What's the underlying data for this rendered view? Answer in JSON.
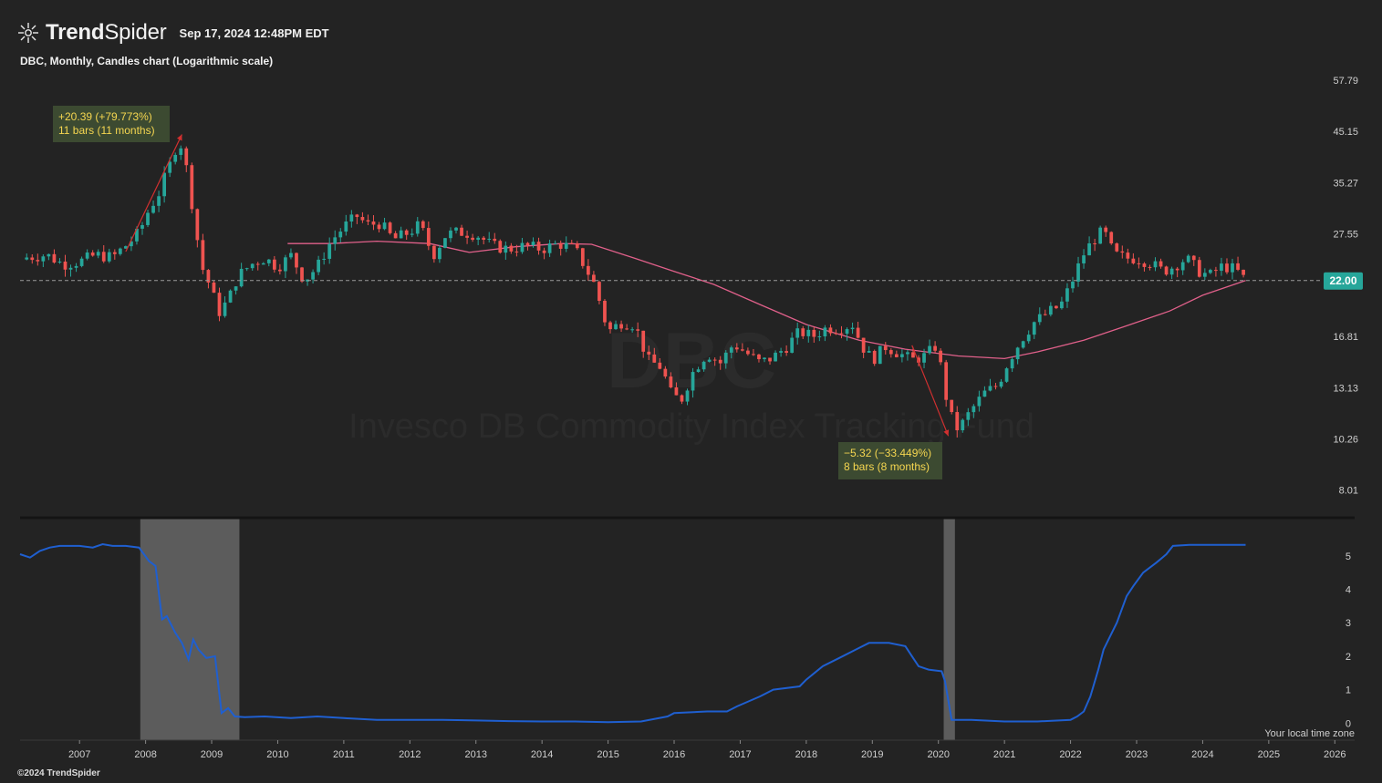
{
  "header": {
    "brand_bold": "Trend",
    "brand_light": "Spider",
    "timestamp": "Sep 17, 2024 12:48PM EDT",
    "subtitle": "DBC, Monthly, Candles chart (Logarithmic scale)",
    "copyright": "©2024 TrendSpider"
  },
  "icons": {
    "logo": "trendspider-logo-icon"
  },
  "watermark": {
    "ticker": "DBC",
    "name": "Invesco DB Commodity Index Tracking Fund"
  },
  "colors": {
    "up": "#26a69a",
    "down": "#ef5350",
    "ma": "#e0608a",
    "rate": "#1f5fd0",
    "shade": "#5c5c5c",
    "price_label": "#26a69a",
    "annotation_bg": "#3c4a31",
    "annotation_text": "#f5d650"
  },
  "chart_data": {
    "type": "candlestick",
    "symbol": "DBC",
    "timeframe": "Monthly",
    "scale": "log",
    "x_ticks": [
      "2007",
      "2008",
      "2009",
      "2010",
      "2011",
      "2012",
      "2013",
      "2014",
      "2015",
      "2016",
      "2017",
      "2018",
      "2019",
      "2020",
      "2021",
      "2022",
      "2023",
      "2024",
      "2025",
      "2026"
    ],
    "y_ticks": [
      "57.79",
      "45.15",
      "35.27",
      "27.55",
      "16.81",
      "13.13",
      "10.26",
      "8.01"
    ],
    "ylim": [
      7.2,
      62
    ],
    "last_price": "22.00",
    "last_price_value": 22.0,
    "close_path": [
      [
        2006.2,
        24.6
      ],
      [
        2006.5,
        24.9
      ],
      [
        2006.75,
        23.8
      ],
      [
        2007.0,
        24.1
      ],
      [
        2007.25,
        24.9
      ],
      [
        2007.5,
        24.6
      ],
      [
        2007.75,
        26.4
      ],
      [
        2007.92,
        28.0
      ],
      [
        2008.0,
        30.0
      ],
      [
        2008.2,
        33.5
      ],
      [
        2008.42,
        40.0
      ],
      [
        2008.5,
        44.0
      ],
      [
        2008.6,
        39.0
      ],
      [
        2008.75,
        28.5
      ],
      [
        2008.85,
        23.5
      ],
      [
        2009.0,
        21.0
      ],
      [
        2009.1,
        18.8
      ],
      [
        2009.25,
        20.0
      ],
      [
        2009.4,
        22.5
      ],
      [
        2009.6,
        23.8
      ],
      [
        2009.8,
        24.5
      ],
      [
        2010.0,
        23.5
      ],
      [
        2010.2,
        24.8
      ],
      [
        2010.4,
        22.0
      ],
      [
        2010.6,
        23.5
      ],
      [
        2010.8,
        26.5
      ],
      [
        2011.0,
        28.5
      ],
      [
        2011.2,
        30.0
      ],
      [
        2011.35,
        28.8
      ],
      [
        2011.55,
        29.0
      ],
      [
        2011.75,
        26.8
      ],
      [
        2012.0,
        27.8
      ],
      [
        2012.15,
        28.8
      ],
      [
        2012.35,
        24.8
      ],
      [
        2012.55,
        27.5
      ],
      [
        2012.75,
        27.8
      ],
      [
        2013.0,
        27.5
      ],
      [
        2013.25,
        26.0
      ],
      [
        2013.5,
        25.6
      ],
      [
        2013.75,
        26.0
      ],
      [
        2014.0,
        25.6
      ],
      [
        2014.25,
        26.3
      ],
      [
        2014.5,
        25.6
      ],
      [
        2014.65,
        23.5
      ],
      [
        2014.8,
        21.5
      ],
      [
        2014.92,
        18.8
      ],
      [
        2015.0,
        17.2
      ],
      [
        2015.2,
        18.0
      ],
      [
        2015.4,
        17.8
      ],
      [
        2015.6,
        15.0
      ],
      [
        2015.8,
        14.5
      ],
      [
        2015.95,
        12.8
      ],
      [
        2016.1,
        12.3
      ],
      [
        2016.3,
        14.3
      ],
      [
        2016.5,
        15.5
      ],
      [
        2016.7,
        14.8
      ],
      [
        2016.9,
        16.2
      ],
      [
        2017.1,
        15.5
      ],
      [
        2017.3,
        14.8
      ],
      [
        2017.5,
        15.2
      ],
      [
        2017.7,
        16.0
      ],
      [
        2017.9,
        17.2
      ],
      [
        2018.1,
        16.8
      ],
      [
        2018.3,
        17.5
      ],
      [
        2018.5,
        17.5
      ],
      [
        2018.7,
        17.8
      ],
      [
        2018.85,
        16.0
      ],
      [
        2019.0,
        15.0
      ],
      [
        2019.2,
        16.0
      ],
      [
        2019.4,
        15.5
      ],
      [
        2019.6,
        15.0
      ],
      [
        2019.8,
        15.3
      ],
      [
        2019.95,
        16.0
      ],
      [
        2020.05,
        14.3
      ],
      [
        2020.15,
        11.7
      ],
      [
        2020.3,
        10.7
      ],
      [
        2020.5,
        11.8
      ],
      [
        2020.7,
        12.8
      ],
      [
        2020.9,
        13.3
      ],
      [
        2021.05,
        14.8
      ],
      [
        2021.25,
        16.5
      ],
      [
        2021.45,
        18.0
      ],
      [
        2021.7,
        19.0
      ],
      [
        2021.85,
        19.5
      ],
      [
        2022.0,
        21.5
      ],
      [
        2022.2,
        25.0
      ],
      [
        2022.35,
        26.8
      ],
      [
        2022.5,
        28.0
      ],
      [
        2022.65,
        25.0
      ],
      [
        2022.85,
        24.5
      ],
      [
        2023.0,
        24.5
      ],
      [
        2023.2,
        24.0
      ],
      [
        2023.4,
        23.0
      ],
      [
        2023.55,
        23.5
      ],
      [
        2023.75,
        24.5
      ],
      [
        2023.95,
        23.0
      ],
      [
        2024.1,
        22.5
      ],
      [
        2024.3,
        23.6
      ],
      [
        2024.5,
        23.2
      ],
      [
        2024.65,
        22.0
      ]
    ],
    "moving_average": [
      [
        2010.15,
        26.3
      ],
      [
        2010.8,
        26.3
      ],
      [
        2011.5,
        26.6
      ],
      [
        2012.3,
        26.3
      ],
      [
        2012.9,
        25.2
      ],
      [
        2013.6,
        25.9
      ],
      [
        2014.3,
        26.3
      ],
      [
        2014.75,
        26.2
      ],
      [
        2015.4,
        24.5
      ],
      [
        2016.0,
        23.0
      ],
      [
        2016.6,
        21.6
      ],
      [
        2017.3,
        19.6
      ],
      [
        2018.0,
        17.8
      ],
      [
        2018.8,
        16.5
      ],
      [
        2019.5,
        15.8
      ],
      [
        2020.3,
        15.3
      ],
      [
        2021.0,
        15.1
      ],
      [
        2021.5,
        15.6
      ],
      [
        2022.2,
        16.5
      ],
      [
        2022.8,
        17.6
      ],
      [
        2023.5,
        19.0
      ],
      [
        2024.0,
        20.5
      ],
      [
        2024.65,
        22.0
      ]
    ],
    "annotations": [
      {
        "text1": "+20.39 (+79.773%)",
        "text2": "11 bars (11 months)",
        "from": [
          2007.7,
          25.3
        ],
        "to": [
          2008.55,
          44.5
        ]
      },
      {
        "text1": "−5.32 (−33.449%)",
        "text2": "8 bars (8 months)",
        "from": [
          2019.6,
          16.1
        ],
        "to": [
          2020.15,
          10.4
        ]
      }
    ]
  },
  "rate_panel": {
    "y_ticks": [
      "5",
      "4",
      "3",
      "2",
      "1",
      "0"
    ],
    "ylim": [
      -0.4,
      5.95
    ],
    "footer": "Your local time zone",
    "shaded_periods": [
      [
        2007.92,
        2009.42
      ],
      [
        2020.08,
        2020.25
      ]
    ],
    "series": [
      [
        2006.1,
        5.05
      ],
      [
        2006.25,
        4.95
      ],
      [
        2006.4,
        5.15
      ],
      [
        2006.55,
        5.25
      ],
      [
        2006.7,
        5.3
      ],
      [
        2007.0,
        5.3
      ],
      [
        2007.2,
        5.25
      ],
      [
        2007.35,
        5.35
      ],
      [
        2007.5,
        5.3
      ],
      [
        2007.7,
        5.3
      ],
      [
        2007.9,
        5.25
      ],
      [
        2008.05,
        4.85
      ],
      [
        2008.15,
        4.7
      ],
      [
        2008.25,
        3.1
      ],
      [
        2008.32,
        3.2
      ],
      [
        2008.45,
        2.7
      ],
      [
        2008.55,
        2.4
      ],
      [
        2008.65,
        1.9
      ],
      [
        2008.72,
        2.5
      ],
      [
        2008.8,
        2.2
      ],
      [
        2008.92,
        1.95
      ],
      [
        2009.05,
        2.0
      ],
      [
        2009.15,
        0.3
      ],
      [
        2009.25,
        0.45
      ],
      [
        2009.35,
        0.2
      ],
      [
        2009.5,
        0.18
      ],
      [
        2009.8,
        0.2
      ],
      [
        2010.2,
        0.15
      ],
      [
        2010.6,
        0.2
      ],
      [
        2011.0,
        0.15
      ],
      [
        2011.5,
        0.1
      ],
      [
        2012.0,
        0.1
      ],
      [
        2012.5,
        0.1
      ],
      [
        2013.0,
        0.08
      ],
      [
        2013.5,
        0.06
      ],
      [
        2014.0,
        0.05
      ],
      [
        2014.5,
        0.05
      ],
      [
        2015.0,
        0.03
      ],
      [
        2015.5,
        0.05
      ],
      [
        2015.9,
        0.2
      ],
      [
        2016.0,
        0.3
      ],
      [
        2016.5,
        0.35
      ],
      [
        2016.8,
        0.35
      ],
      [
        2016.95,
        0.5
      ],
      [
        2017.3,
        0.8
      ],
      [
        2017.5,
        1.0
      ],
      [
        2017.9,
        1.1
      ],
      [
        2018.0,
        1.3
      ],
      [
        2018.25,
        1.7
      ],
      [
        2018.5,
        1.95
      ],
      [
        2018.75,
        2.2
      ],
      [
        2018.95,
        2.4
      ],
      [
        2019.25,
        2.4
      ],
      [
        2019.5,
        2.3
      ],
      [
        2019.6,
        2.0
      ],
      [
        2019.7,
        1.7
      ],
      [
        2019.85,
        1.6
      ],
      [
        2020.05,
        1.55
      ],
      [
        2020.1,
        1.25
      ],
      [
        2020.2,
        0.1
      ],
      [
        2020.5,
        0.1
      ],
      [
        2021.0,
        0.05
      ],
      [
        2021.5,
        0.05
      ],
      [
        2022.0,
        0.1
      ],
      [
        2022.1,
        0.2
      ],
      [
        2022.2,
        0.35
      ],
      [
        2022.3,
        0.8
      ],
      [
        2022.42,
        1.6
      ],
      [
        2022.5,
        2.2
      ],
      [
        2022.6,
        2.6
      ],
      [
        2022.7,
        3.0
      ],
      [
        2022.85,
        3.8
      ],
      [
        2022.95,
        4.1
      ],
      [
        2023.1,
        4.5
      ],
      [
        2023.3,
        4.8
      ],
      [
        2023.45,
        5.05
      ],
      [
        2023.55,
        5.3
      ],
      [
        2023.8,
        5.33
      ],
      [
        2024.0,
        5.33
      ],
      [
        2024.3,
        5.33
      ],
      [
        2024.65,
        5.33
      ]
    ]
  }
}
